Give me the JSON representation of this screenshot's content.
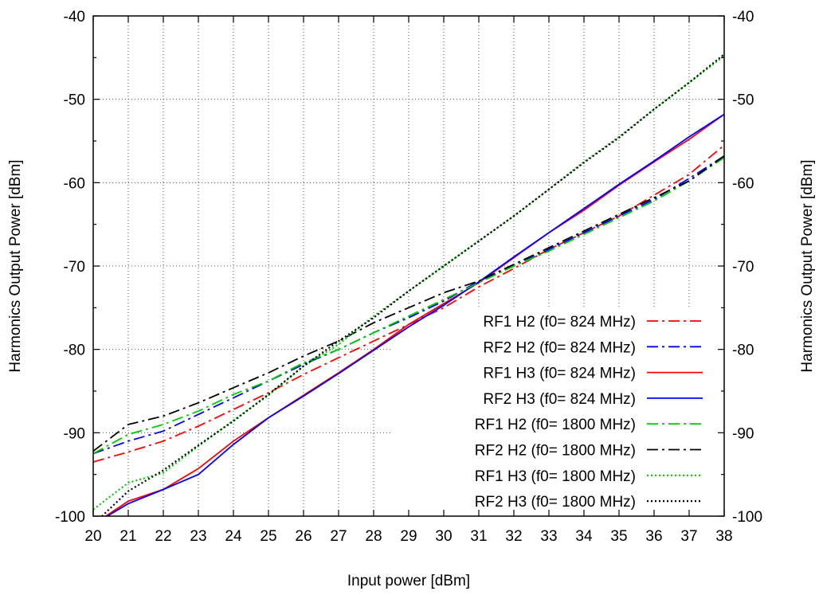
{
  "chart_data": {
    "type": "line",
    "xlabel": "Input power [dBm]",
    "ylabel": "Harmonics Output Power [dBm]",
    "y2label": "Harmonics Output Power [dBm]",
    "xlim": [
      20,
      38
    ],
    "ylim": [
      -100,
      -40
    ],
    "xticks": [
      20,
      21,
      22,
      23,
      24,
      25,
      26,
      27,
      28,
      29,
      30,
      31,
      32,
      33,
      34,
      35,
      36,
      37,
      38
    ],
    "yticks": [
      -40,
      -50,
      -60,
      -70,
      -80,
      -90,
      -100
    ],
    "grid": true,
    "legend_position": "bottom-right",
    "series": [
      {
        "name": "RF1 H2 (f0= 824 MHz)",
        "color": "#ff0000",
        "dash": "dashdot",
        "x": [
          20,
          21,
          22,
          23,
          24,
          25,
          26,
          27,
          28,
          29,
          30,
          31,
          32,
          33,
          34,
          35,
          36,
          37,
          38
        ],
        "y": [
          -93.5,
          -92.3,
          -91.0,
          -89.2,
          -87.2,
          -85.2,
          -83.0,
          -81.0,
          -79.0,
          -77.0,
          -75.0,
          -72.5,
          -70.3,
          -68.0,
          -66.0,
          -64.0,
          -61.5,
          -59.0,
          -55.5
        ]
      },
      {
        "name": "RF2 H2 (f0= 824 MHz)",
        "color": "#0000ff",
        "dash": "dashdot",
        "x": [
          20,
          21,
          22,
          23,
          24,
          25,
          26,
          27,
          28,
          29,
          30,
          31,
          32,
          33,
          34,
          35,
          36,
          37,
          38
        ],
        "y": [
          -92.5,
          -91.0,
          -89.8,
          -87.8,
          -85.8,
          -83.8,
          -81.8,
          -80.0,
          -78.0,
          -76.2,
          -74.2,
          -71.8,
          -70.0,
          -68.0,
          -66.0,
          -64.0,
          -62.0,
          -59.5,
          -56.8
        ]
      },
      {
        "name": "RF1 H3 (f0= 824 MHz)",
        "color": "#ff0000",
        "dash": "solid",
        "x": [
          20,
          21,
          22,
          23,
          24,
          25,
          26,
          27,
          28,
          29,
          30,
          31,
          32,
          33,
          34,
          35,
          36,
          37,
          38
        ],
        "y": [
          -101,
          -98.2,
          -96.8,
          -94.3,
          -91.0,
          -88.2,
          -85.5,
          -82.8,
          -80.0,
          -77.0,
          -74.5,
          -72.0,
          -69.0,
          -66.0,
          -63.3,
          -60.3,
          -57.5,
          -54.8,
          -51.8
        ]
      },
      {
        "name": "RF2 H3 (f0= 824 MHz)",
        "color": "#0000ff",
        "dash": "solid",
        "x": [
          20,
          21,
          22,
          23,
          24,
          25,
          26,
          27,
          28,
          29,
          30,
          31,
          32,
          33,
          34,
          35,
          36,
          37,
          38
        ],
        "y": [
          -101,
          -98.5,
          -96.8,
          -95.0,
          -91.4,
          -88.2,
          -85.6,
          -82.9,
          -80.1,
          -77.3,
          -74.7,
          -71.9,
          -68.9,
          -66.0,
          -63.1,
          -60.2,
          -57.4,
          -54.5,
          -51.8
        ]
      },
      {
        "name": "RF1 H2 (f0= 1800 MHz)",
        "color": "#00cc00",
        "dash": "dashdot",
        "x": [
          20,
          21,
          22,
          23,
          24,
          25,
          26,
          27,
          28,
          29,
          30,
          31,
          32,
          33,
          34,
          35,
          36,
          37,
          38
        ],
        "y": [
          -92.5,
          -90.2,
          -89.0,
          -87.4,
          -85.4,
          -83.8,
          -81.6,
          -80.0,
          -78.0,
          -76.0,
          -74.0,
          -72.0,
          -70.0,
          -68.2,
          -66.2,
          -64.2,
          -62.2,
          -59.8,
          -57.0
        ]
      },
      {
        "name": "RF2 H2 (f0= 1800 MHz)",
        "color": "#000000",
        "dash": "dashdot",
        "x": [
          20,
          21,
          22,
          23,
          24,
          25,
          26,
          27,
          28,
          29,
          30,
          31,
          32,
          33,
          34,
          35,
          36,
          37,
          38
        ],
        "y": [
          -92.2,
          -89.0,
          -88.0,
          -86.4,
          -84.6,
          -82.8,
          -80.8,
          -79.0,
          -76.8,
          -75.0,
          -73.2,
          -71.8,
          -69.8,
          -67.8,
          -65.8,
          -63.8,
          -61.8,
          -59.8,
          -56.8
        ]
      },
      {
        "name": "RF1 H3 (f0= 1800 MHz)",
        "color": "#00cc00",
        "dash": "dotted",
        "x": [
          20,
          21,
          22,
          23,
          24,
          25,
          26,
          27,
          28,
          29,
          30,
          31,
          32,
          33,
          34,
          35,
          36,
          37,
          38
        ],
        "y": [
          -99.2,
          -96.0,
          -94.8,
          -91.6,
          -88.5,
          -85.5,
          -82.0,
          -79.4,
          -76.0,
          -73.0,
          -70.0,
          -67.0,
          -64.0,
          -60.8,
          -57.5,
          -54.5,
          -51.2,
          -48.0,
          -44.8
        ]
      },
      {
        "name": "RF2 H3 (f0= 1800 MHz)",
        "color": "#000000",
        "dash": "dotted",
        "x": [
          20,
          21,
          22,
          23,
          24,
          25,
          26,
          27,
          28,
          29,
          30,
          31,
          32,
          33,
          34,
          35,
          36,
          37,
          38
        ],
        "y": [
          -101,
          -97.0,
          -94.5,
          -91.5,
          -88.6,
          -85.4,
          -82.0,
          -79.0,
          -76.2,
          -73.0,
          -70.0,
          -67.0,
          -64.0,
          -60.8,
          -57.6,
          -54.6,
          -51.2,
          -48.0,
          -44.6
        ]
      }
    ]
  }
}
